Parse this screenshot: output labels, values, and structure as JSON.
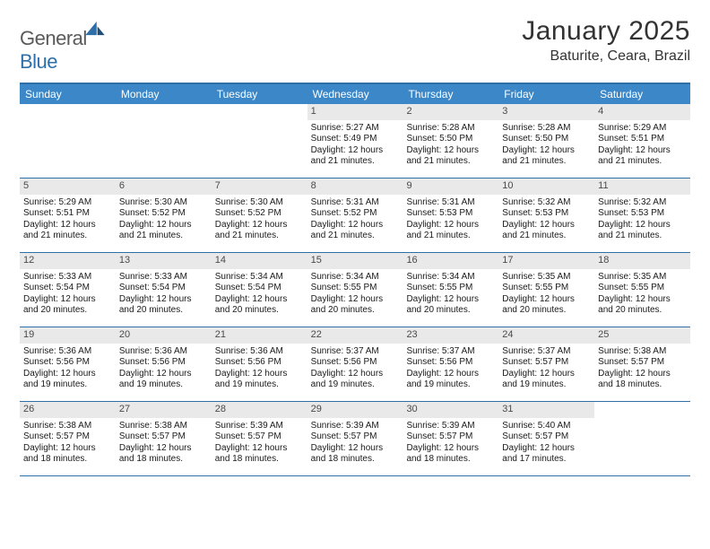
{
  "brand": {
    "word1": "General",
    "word2": "Blue"
  },
  "title": "January 2025",
  "location": "Baturite, Ceara, Brazil",
  "colors": {
    "header_bar": "#3b87c8",
    "rule": "#2f6fa8",
    "daynum_bg": "#e9e9e9",
    "text": "#1a1a1a",
    "logo_gray": "#5a5a5a",
    "logo_blue": "#2f6fa8"
  },
  "day_names": [
    "Sunday",
    "Monday",
    "Tuesday",
    "Wednesday",
    "Thursday",
    "Friday",
    "Saturday"
  ],
  "labels": {
    "sunrise": "Sunrise:",
    "sunset": "Sunset:",
    "daylight": "Daylight:"
  },
  "weeks": [
    [
      null,
      null,
      null,
      {
        "n": "1",
        "sr": "5:27 AM",
        "ss": "5:49 PM",
        "dl": "12 hours and 21 minutes."
      },
      {
        "n": "2",
        "sr": "5:28 AM",
        "ss": "5:50 PM",
        "dl": "12 hours and 21 minutes."
      },
      {
        "n": "3",
        "sr": "5:28 AM",
        "ss": "5:50 PM",
        "dl": "12 hours and 21 minutes."
      },
      {
        "n": "4",
        "sr": "5:29 AM",
        "ss": "5:51 PM",
        "dl": "12 hours and 21 minutes."
      }
    ],
    [
      {
        "n": "5",
        "sr": "5:29 AM",
        "ss": "5:51 PM",
        "dl": "12 hours and 21 minutes."
      },
      {
        "n": "6",
        "sr": "5:30 AM",
        "ss": "5:52 PM",
        "dl": "12 hours and 21 minutes."
      },
      {
        "n": "7",
        "sr": "5:30 AM",
        "ss": "5:52 PM",
        "dl": "12 hours and 21 minutes."
      },
      {
        "n": "8",
        "sr": "5:31 AM",
        "ss": "5:52 PM",
        "dl": "12 hours and 21 minutes."
      },
      {
        "n": "9",
        "sr": "5:31 AM",
        "ss": "5:53 PM",
        "dl": "12 hours and 21 minutes."
      },
      {
        "n": "10",
        "sr": "5:32 AM",
        "ss": "5:53 PM",
        "dl": "12 hours and 21 minutes."
      },
      {
        "n": "11",
        "sr": "5:32 AM",
        "ss": "5:53 PM",
        "dl": "12 hours and 21 minutes."
      }
    ],
    [
      {
        "n": "12",
        "sr": "5:33 AM",
        "ss": "5:54 PM",
        "dl": "12 hours and 20 minutes."
      },
      {
        "n": "13",
        "sr": "5:33 AM",
        "ss": "5:54 PM",
        "dl": "12 hours and 20 minutes."
      },
      {
        "n": "14",
        "sr": "5:34 AM",
        "ss": "5:54 PM",
        "dl": "12 hours and 20 minutes."
      },
      {
        "n": "15",
        "sr": "5:34 AM",
        "ss": "5:55 PM",
        "dl": "12 hours and 20 minutes."
      },
      {
        "n": "16",
        "sr": "5:34 AM",
        "ss": "5:55 PM",
        "dl": "12 hours and 20 minutes."
      },
      {
        "n": "17",
        "sr": "5:35 AM",
        "ss": "5:55 PM",
        "dl": "12 hours and 20 minutes."
      },
      {
        "n": "18",
        "sr": "5:35 AM",
        "ss": "5:55 PM",
        "dl": "12 hours and 20 minutes."
      }
    ],
    [
      {
        "n": "19",
        "sr": "5:36 AM",
        "ss": "5:56 PM",
        "dl": "12 hours and 19 minutes."
      },
      {
        "n": "20",
        "sr": "5:36 AM",
        "ss": "5:56 PM",
        "dl": "12 hours and 19 minutes."
      },
      {
        "n": "21",
        "sr": "5:36 AM",
        "ss": "5:56 PM",
        "dl": "12 hours and 19 minutes."
      },
      {
        "n": "22",
        "sr": "5:37 AM",
        "ss": "5:56 PM",
        "dl": "12 hours and 19 minutes."
      },
      {
        "n": "23",
        "sr": "5:37 AM",
        "ss": "5:56 PM",
        "dl": "12 hours and 19 minutes."
      },
      {
        "n": "24",
        "sr": "5:37 AM",
        "ss": "5:57 PM",
        "dl": "12 hours and 19 minutes."
      },
      {
        "n": "25",
        "sr": "5:38 AM",
        "ss": "5:57 PM",
        "dl": "12 hours and 18 minutes."
      }
    ],
    [
      {
        "n": "26",
        "sr": "5:38 AM",
        "ss": "5:57 PM",
        "dl": "12 hours and 18 minutes."
      },
      {
        "n": "27",
        "sr": "5:38 AM",
        "ss": "5:57 PM",
        "dl": "12 hours and 18 minutes."
      },
      {
        "n": "28",
        "sr": "5:39 AM",
        "ss": "5:57 PM",
        "dl": "12 hours and 18 minutes."
      },
      {
        "n": "29",
        "sr": "5:39 AM",
        "ss": "5:57 PM",
        "dl": "12 hours and 18 minutes."
      },
      {
        "n": "30",
        "sr": "5:39 AM",
        "ss": "5:57 PM",
        "dl": "12 hours and 18 minutes."
      },
      {
        "n": "31",
        "sr": "5:40 AM",
        "ss": "5:57 PM",
        "dl": "12 hours and 17 minutes."
      },
      null
    ]
  ]
}
